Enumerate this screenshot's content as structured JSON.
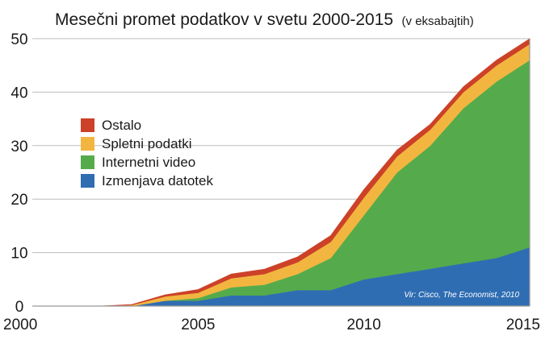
{
  "chart_data": {
    "type": "area",
    "stacked": true,
    "title": "Mesečni promet podatkov v svetu 2000-2015",
    "subtitle": "(v eksabajtih)",
    "x": [
      2000,
      2001,
      2002,
      2003,
      2004,
      2005,
      2006,
      2007,
      2008,
      2009,
      2010,
      2011,
      2012,
      2013,
      2014,
      2015
    ],
    "x_ticks": [
      2000,
      2005,
      2010,
      2015
    ],
    "y_ticks": [
      0,
      10,
      20,
      30,
      40,
      50
    ],
    "ylim": [
      0,
      50
    ],
    "xlim": [
      2000,
      2015
    ],
    "grid": true,
    "legend_position": "left-middle",
    "series": [
      {
        "name": "Izmenjava datotek",
        "color": "#2f6db3",
        "values": [
          0,
          0,
          0,
          0,
          1,
          1,
          2,
          2,
          3,
          3,
          5,
          6,
          7,
          8,
          9,
          11
        ]
      },
      {
        "name": "Internetni video",
        "color": "#55ab4b",
        "values": [
          0,
          0,
          0,
          0,
          0,
          0.5,
          1.5,
          2,
          3,
          6,
          12,
          19,
          23,
          29,
          33,
          35
        ]
      },
      {
        "name": "Spletni podatki",
        "color": "#f2b640",
        "values": [
          0,
          0,
          0,
          0.2,
          0.8,
          1,
          1.7,
          2,
          2.2,
          3,
          3.3,
          3,
          3,
          3,
          3,
          3
        ]
      },
      {
        "name": "Ostalo",
        "color": "#cc4128",
        "values": [
          0,
          0,
          0,
          0.1,
          0.3,
          0.6,
          0.8,
          0.9,
          1,
          1.2,
          1.5,
          1.2,
          1,
          1,
          1,
          1
        ]
      }
    ],
    "legend_order": [
      "Ostalo",
      "Spletni podatki",
      "Internetni video",
      "Izmenjava datotek"
    ],
    "source_note": "Vir: Cisco, The Economist, 2010"
  }
}
